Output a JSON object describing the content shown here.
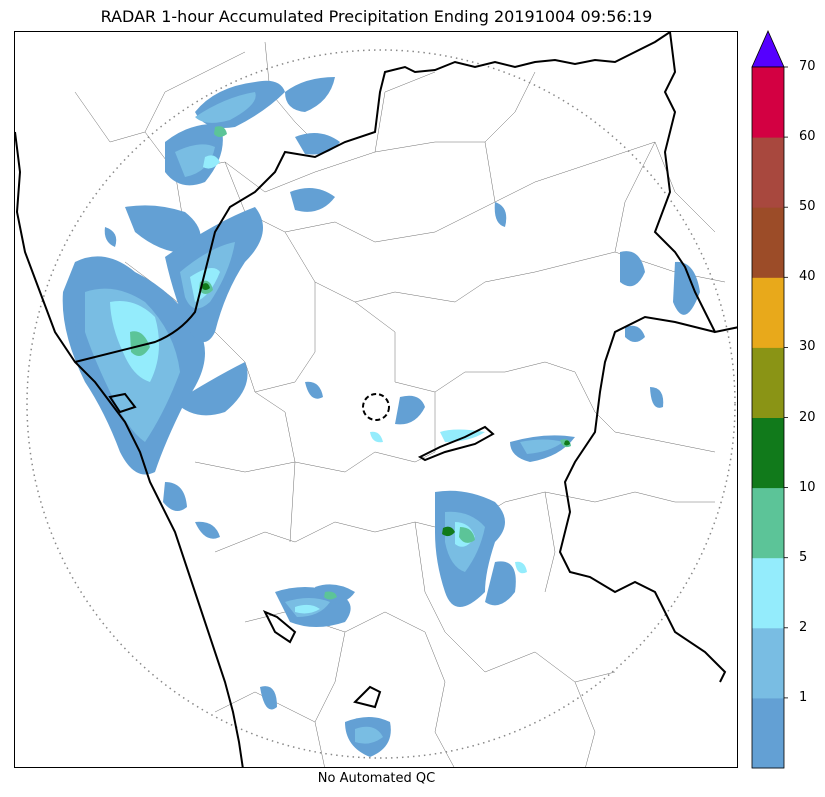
{
  "title": "RADAR 1-hour Accumulated Precipitation Ending 20191004 09:56:19",
  "footnote": "No Automated QC",
  "colorbar": {
    "extend": "max",
    "extend_color": "#5500ff",
    "levels": [
      {
        "from": 0,
        "to": 1,
        "color": "#63a0d4"
      },
      {
        "from": 1,
        "to": 2,
        "color": "#79bde3"
      },
      {
        "from": 2,
        "to": 5,
        "color": "#94ecfc"
      },
      {
        "from": 5,
        "to": 10,
        "color": "#5cc498"
      },
      {
        "from": 10,
        "to": 20,
        "color": "#117a1b"
      },
      {
        "from": 20,
        "to": 30,
        "color": "#8a9415"
      },
      {
        "from": 30,
        "to": 40,
        "color": "#e8a91b"
      },
      {
        "from": 40,
        "to": 50,
        "color": "#9c4c28"
      },
      {
        "from": 50,
        "to": 60,
        "color": "#a8483e"
      },
      {
        "from": 60,
        "to": 70,
        "color": "#d30042"
      }
    ],
    "tick_labels": [
      "1",
      "2",
      "5",
      "10",
      "20",
      "30",
      "40",
      "50",
      "60",
      "70"
    ]
  },
  "map": {
    "range_ring": "dotted grey circle",
    "radar_site_marker": "dashed black circle",
    "coastline_color": "#000000",
    "state_boundary_color": "#000000",
    "district_boundary_color": "#555555"
  }
}
